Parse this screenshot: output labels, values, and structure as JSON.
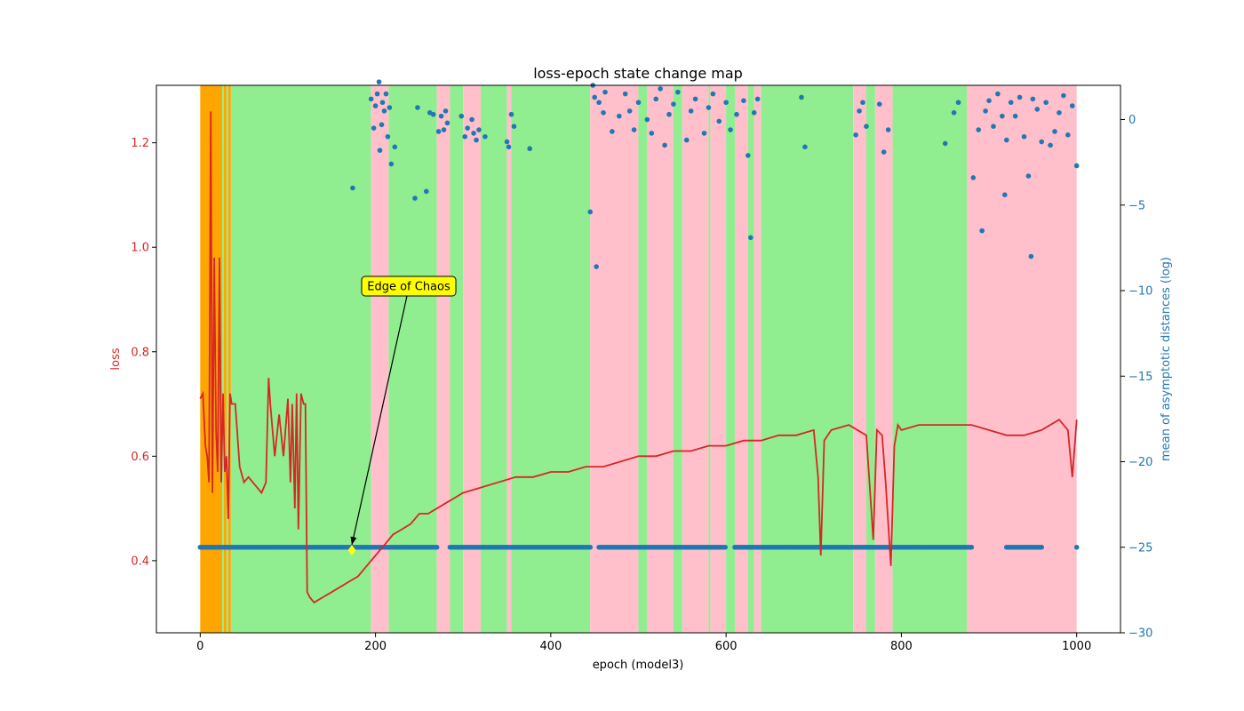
{
  "chart_data": {
    "type": "line",
    "title": "loss-epoch state change map",
    "xlabel": "epoch (model3)",
    "ylabel": "loss",
    "y2label": "mean of asymptotic distances (log)",
    "xlim": [
      -50,
      1050
    ],
    "ylim": [
      0.262,
      1.31
    ],
    "y2lim": [
      -30,
      2
    ],
    "xticks": [
      0,
      200,
      400,
      600,
      800,
      1000
    ],
    "yticks": [
      0.4,
      0.6,
      0.8,
      1.0,
      1.2
    ],
    "yticklabels": [
      "0.4",
      "0.6",
      "0.8",
      "1.0",
      "1.2"
    ],
    "y2ticks": [
      0,
      -5,
      -10,
      -15,
      -20,
      -25,
      -30
    ],
    "colors": {
      "loss": "#d62728",
      "distance": "#1f77b4",
      "orange": "#ffa500",
      "green": "#90ee90",
      "pink": "#ffc0cb",
      "annotation_box": "#ffff00",
      "annotation_marker": "#ffff00"
    },
    "state_regions": [
      {
        "state": "orange",
        "start": 0,
        "end": 25
      },
      {
        "state": "green",
        "start": 25,
        "end": 27
      },
      {
        "state": "orange",
        "start": 27,
        "end": 30
      },
      {
        "state": "green",
        "start": 30,
        "end": 32
      },
      {
        "state": "orange",
        "start": 32,
        "end": 35
      },
      {
        "state": "green",
        "start": 35,
        "end": 195
      },
      {
        "state": "pink",
        "start": 195,
        "end": 215
      },
      {
        "state": "green",
        "start": 215,
        "end": 270
      },
      {
        "state": "pink",
        "start": 270,
        "end": 285
      },
      {
        "state": "green",
        "start": 285,
        "end": 300
      },
      {
        "state": "pink",
        "start": 300,
        "end": 320
      },
      {
        "state": "green",
        "start": 320,
        "end": 350
      },
      {
        "state": "pink",
        "start": 350,
        "end": 355
      },
      {
        "state": "green",
        "start": 355,
        "end": 445
      },
      {
        "state": "pink",
        "start": 445,
        "end": 500
      },
      {
        "state": "green",
        "start": 500,
        "end": 510
      },
      {
        "state": "pink",
        "start": 510,
        "end": 540
      },
      {
        "state": "green",
        "start": 540,
        "end": 550
      },
      {
        "state": "pink",
        "start": 550,
        "end": 580
      },
      {
        "state": "green",
        "start": 580,
        "end": 582
      },
      {
        "state": "pink",
        "start": 582,
        "end": 600
      },
      {
        "state": "green",
        "start": 600,
        "end": 610
      },
      {
        "state": "pink",
        "start": 610,
        "end": 625
      },
      {
        "state": "green",
        "start": 625,
        "end": 632
      },
      {
        "state": "pink",
        "start": 632,
        "end": 640
      },
      {
        "state": "green",
        "start": 640,
        "end": 745
      },
      {
        "state": "pink",
        "start": 745,
        "end": 760
      },
      {
        "state": "green",
        "start": 760,
        "end": 770
      },
      {
        "state": "pink",
        "start": 770,
        "end": 790
      },
      {
        "state": "green",
        "start": 790,
        "end": 875
      },
      {
        "state": "pink",
        "start": 875,
        "end": 1000
      }
    ],
    "loss_series": {
      "name": "loss",
      "x": [
        0,
        3,
        6,
        8,
        10,
        12,
        14,
        16,
        18,
        20,
        22,
        24,
        26,
        28,
        30,
        32,
        34,
        36,
        40,
        45,
        50,
        55,
        60,
        65,
        70,
        75,
        78,
        80,
        85,
        90,
        95,
        100,
        103,
        105,
        108,
        110,
        112,
        115,
        118,
        120,
        122,
        125,
        130,
        140,
        150,
        160,
        170,
        180,
        190,
        200,
        210,
        220,
        230,
        240,
        250,
        260,
        270,
        280,
        290,
        300,
        320,
        340,
        360,
        380,
        400,
        420,
        440,
        460,
        480,
        500,
        520,
        540,
        560,
        580,
        600,
        620,
        640,
        660,
        680,
        700,
        705,
        708,
        712,
        720,
        740,
        760,
        768,
        772,
        778,
        782,
        788,
        792,
        796,
        800,
        820,
        840,
        860,
        880,
        900,
        920,
        940,
        960,
        980,
        990,
        995,
        1000
      ],
      "y": [
        0.71,
        0.72,
        0.62,
        0.6,
        0.55,
        1.26,
        0.53,
        0.98,
        0.65,
        0.57,
        0.98,
        0.55,
        0.72,
        0.57,
        0.6,
        0.48,
        0.72,
        0.7,
        0.7,
        0.58,
        0.55,
        0.56,
        0.55,
        0.54,
        0.53,
        0.55,
        0.75,
        0.7,
        0.6,
        0.68,
        0.6,
        0.71,
        0.55,
        0.7,
        0.5,
        0.72,
        0.46,
        0.72,
        0.7,
        0.7,
        0.34,
        0.33,
        0.32,
        0.33,
        0.34,
        0.35,
        0.36,
        0.37,
        0.39,
        0.41,
        0.43,
        0.45,
        0.46,
        0.47,
        0.49,
        0.49,
        0.5,
        0.51,
        0.52,
        0.53,
        0.54,
        0.55,
        0.56,
        0.56,
        0.57,
        0.57,
        0.58,
        0.58,
        0.59,
        0.6,
        0.6,
        0.61,
        0.61,
        0.62,
        0.62,
        0.63,
        0.63,
        0.64,
        0.64,
        0.65,
        0.56,
        0.41,
        0.63,
        0.65,
        0.66,
        0.64,
        0.44,
        0.65,
        0.64,
        0.55,
        0.39,
        0.62,
        0.66,
        0.65,
        0.66,
        0.66,
        0.66,
        0.66,
        0.65,
        0.64,
        0.64,
        0.65,
        0.67,
        0.65,
        0.56,
        0.67
      ]
    },
    "distance_points_high": [
      [
        174,
        -4
      ],
      [
        195,
        1.2
      ],
      [
        198,
        -0.5
      ],
      [
        200,
        0.8
      ],
      [
        202,
        1.5
      ],
      [
        204,
        2.2
      ],
      [
        205,
        -1.8
      ],
      [
        207,
        -0.3
      ],
      [
        208,
        1.0
      ],
      [
        210,
        0.5
      ],
      [
        212,
        1.5
      ],
      [
        214,
        -1.0
      ],
      [
        216,
        0.7
      ],
      [
        218,
        -2.6
      ],
      [
        222,
        -1.6
      ],
      [
        245,
        -4.6
      ],
      [
        248,
        0.7
      ],
      [
        258,
        -4.2
      ],
      [
        262,
        0.4
      ],
      [
        266,
        0.3
      ],
      [
        272,
        -0.7
      ],
      [
        275,
        0.2
      ],
      [
        278,
        -0.6
      ],
      [
        280,
        0.5
      ],
      [
        282,
        -0.2
      ],
      [
        298,
        0.2
      ],
      [
        302,
        -1.0
      ],
      [
        305,
        -0.5
      ],
      [
        310,
        0.0
      ],
      [
        312,
        -0.8
      ],
      [
        315,
        -1.2
      ],
      [
        318,
        -0.6
      ],
      [
        325,
        -1.0
      ],
      [
        350,
        -1.3
      ],
      [
        352,
        -1.6
      ],
      [
        355,
        0.3
      ],
      [
        358,
        -0.4
      ],
      [
        376,
        -1.7
      ],
      [
        445,
        -5.4
      ],
      [
        448,
        2.0
      ],
      [
        450,
        1.3
      ],
      [
        452,
        -8.6
      ],
      [
        455,
        1.0
      ],
      [
        460,
        0.4
      ],
      [
        462,
        1.6
      ],
      [
        470,
        -0.7
      ],
      [
        478,
        0.2
      ],
      [
        485,
        1.5
      ],
      [
        490,
        0.5
      ],
      [
        495,
        -0.6
      ],
      [
        500,
        1.0
      ],
      [
        510,
        0.0
      ],
      [
        515,
        -0.8
      ],
      [
        520,
        1.2
      ],
      [
        525,
        1.8
      ],
      [
        530,
        -1.5
      ],
      [
        535,
        0.3
      ],
      [
        540,
        0.9
      ],
      [
        545,
        1.6
      ],
      [
        555,
        -1.2
      ],
      [
        560,
        0.5
      ],
      [
        565,
        1.2
      ],
      [
        575,
        -0.8
      ],
      [
        580,
        0.7
      ],
      [
        585,
        1.5
      ],
      [
        592,
        -0.1
      ],
      [
        600,
        1.0
      ],
      [
        605,
        -0.6
      ],
      [
        612,
        0.3
      ],
      [
        620,
        1.1
      ],
      [
        625,
        -2.1
      ],
      [
        628,
        -6.9
      ],
      [
        632,
        0.4
      ],
      [
        636,
        1.2
      ],
      [
        686,
        1.3
      ],
      [
        690,
        -1.6
      ],
      [
        748,
        -0.9
      ],
      [
        752,
        0.5
      ],
      [
        756,
        1.0
      ],
      [
        760,
        -0.4
      ],
      [
        775,
        0.9
      ],
      [
        780,
        -1.9
      ],
      [
        785,
        -0.6
      ],
      [
        850,
        -1.4
      ],
      [
        860,
        0.4
      ],
      [
        865,
        1.0
      ],
      [
        882,
        -3.4
      ],
      [
        888,
        -0.6
      ],
      [
        892,
        -6.5
      ],
      [
        896,
        0.5
      ],
      [
        900,
        1.1
      ],
      [
        905,
        -0.4
      ],
      [
        910,
        1.5
      ],
      [
        915,
        0.2
      ],
      [
        918,
        -4.4
      ],
      [
        920,
        -1.2
      ],
      [
        925,
        1.0
      ],
      [
        930,
        0.2
      ],
      [
        935,
        1.3
      ],
      [
        940,
        -1.0
      ],
      [
        945,
        -3.3
      ],
      [
        948,
        -8.0
      ],
      [
        950,
        1.2
      ],
      [
        955,
        0.6
      ],
      [
        960,
        -1.3
      ],
      [
        965,
        1.0
      ],
      [
        970,
        -1.5
      ],
      [
        975,
        -0.7
      ],
      [
        980,
        0.4
      ],
      [
        985,
        1.4
      ],
      [
        990,
        -0.9
      ],
      [
        995,
        0.8
      ],
      [
        1000,
        -2.7
      ]
    ],
    "distance_baseline": {
      "value": -25,
      "segments": [
        [
          0,
          270
        ],
        [
          285,
          445
        ],
        [
          455,
          600
        ],
        [
          610,
          880
        ],
        [
          920,
          960
        ],
        [
          1000,
          1000
        ]
      ]
    },
    "annotation": {
      "text": "Edge of Chaos",
      "x": 173,
      "y": 0.42
    }
  }
}
